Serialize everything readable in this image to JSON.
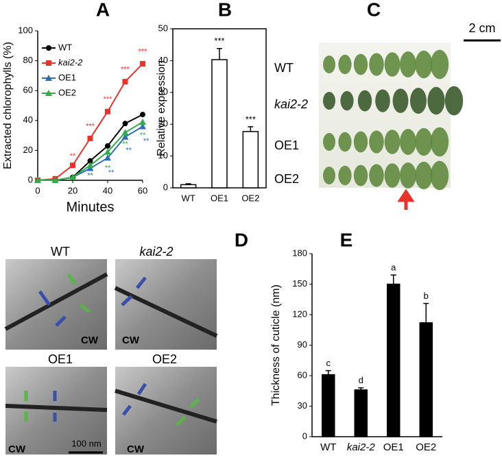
{
  "chart_data": [
    {
      "type": "line",
      "title": "A",
      "x_label": "Minutes",
      "y_label": "Extracted chlorophylls (%)",
      "x": [
        0,
        10,
        20,
        30,
        40,
        50,
        60
      ],
      "xlim": [
        0,
        60
      ],
      "xticks": [
        0,
        20,
        40,
        60
      ],
      "ylim": [
        0,
        100
      ],
      "yticks": [
        0,
        20,
        40,
        60,
        80,
        100
      ],
      "series": [
        {
          "name": "WT",
          "color": "#000000",
          "marker": "circle",
          "values": [
            0,
            0,
            2,
            13,
            23,
            38,
            44
          ]
        },
        {
          "name": "kai2-2",
          "color": "#e8332b",
          "marker": "square",
          "values": [
            0,
            1,
            10,
            28,
            46,
            66,
            78
          ]
        },
        {
          "name": "OE1",
          "color": "#2c6fb7",
          "marker": "triangle",
          "values": [
            0,
            0,
            2,
            8,
            15,
            29,
            36
          ]
        },
        {
          "name": "OE2",
          "color": "#2fae4a",
          "marker": "triangle",
          "values": [
            0,
            0,
            2,
            10,
            19,
            32,
            39
          ]
        }
      ],
      "annotations": [
        {
          "text": "**",
          "x": 20,
          "y": 16,
          "color": "#e8332b"
        },
        {
          "text": "***",
          "x": 30,
          "y": 36,
          "color": "#e8332b"
        },
        {
          "text": "***",
          "x": 40,
          "y": 54,
          "color": "#e8332b"
        },
        {
          "text": "***",
          "x": 50,
          "y": 74,
          "color": "#e8332b"
        },
        {
          "text": "***",
          "x": 60,
          "y": 86,
          "color": "#e8332b"
        },
        {
          "text": "**",
          "x": 30,
          "y": 3,
          "color": "#2c6fb7"
        },
        {
          "text": "**",
          "x": 40,
          "y": 8,
          "color": "#2fae4a"
        },
        {
          "text": "**",
          "x": 42,
          "y": 5,
          "color": "#2c6fb7"
        },
        {
          "text": "**",
          "x": 50,
          "y": 24,
          "color": "#2fae4a"
        },
        {
          "text": "**",
          "x": 52,
          "y": 20,
          "color": "#2c6fb7"
        },
        {
          "text": "**",
          "x": 60,
          "y": 30,
          "color": "#2fae4a"
        },
        {
          "text": "**",
          "x": 62,
          "y": 26,
          "color": "#2c6fb7"
        }
      ]
    },
    {
      "type": "bar",
      "title": "B",
      "y_label": "Relative expression",
      "categories": [
        "WT",
        "OE1",
        "OE2"
      ],
      "values": [
        1,
        40.3,
        17.7
      ],
      "errors": [
        0.3,
        3.5,
        1.5
      ],
      "sig_labels": [
        null,
        "***",
        "***"
      ],
      "color": "#ffffff",
      "ylim": [
        0,
        50
      ],
      "yticks": [
        0,
        10,
        20,
        30,
        40,
        50
      ]
    },
    {
      "type": "bar",
      "title": "E",
      "y_label": "Thickness of cuticle (nm)",
      "categories": [
        "WT",
        "kai2-2",
        "OE1",
        "OE2"
      ],
      "values": [
        61,
        46,
        150,
        112
      ],
      "errors": [
        4,
        2,
        9,
        19
      ],
      "sig_labels": [
        "c",
        "d",
        "a",
        "b"
      ],
      "color": "#000000",
      "ylim": [
        0,
        180
      ],
      "yticks": [
        0,
        30,
        60,
        90,
        120,
        150,
        180
      ]
    }
  ],
  "photos_c": {
    "title": "C",
    "scale": "2 cm",
    "rows": [
      "WT",
      "kai2-2",
      "OE1",
      "OE2"
    ]
  },
  "photos_d": {
    "title": "D",
    "scale": "100 nm",
    "panels": [
      {
        "label": "WT",
        "cw": "CW"
      },
      {
        "label": "kai2-2",
        "cw": "CW"
      },
      {
        "label": "OE1",
        "cw": "CW"
      },
      {
        "label": "OE2",
        "cw": "CW"
      }
    ]
  }
}
